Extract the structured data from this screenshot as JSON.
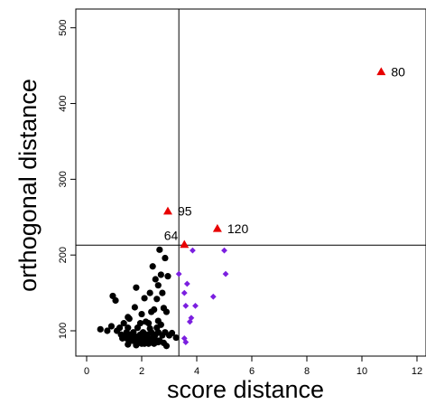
{
  "chart_data": {
    "type": "scatter",
    "title": "",
    "xlabel": "score distance",
    "ylabel": "orthogonal distance",
    "xlim": [
      -0.5,
      12.2
    ],
    "ylim": [
      60,
      540
    ],
    "xticks": [
      0,
      2,
      4,
      6,
      8,
      10,
      12
    ],
    "yticks": [
      100,
      200,
      300,
      400,
      500
    ],
    "grid": false,
    "legend": "none",
    "cutoffs": {
      "score": 3.35,
      "orthogonal": 213
    },
    "series": [
      {
        "marker": "circle",
        "color": "#000000",
        "x": [
          2.65,
          2.85,
          2.4,
          2.7,
          2.5,
          2.95,
          2.6,
          2.75,
          1.8,
          2.3,
          2.1,
          2.55,
          2.8,
          2.9,
          1.75,
          2.45,
          2.35,
          2.0,
          1.5,
          0.95,
          1.05,
          1.55,
          2.6,
          2.15,
          1.35,
          1.95,
          2.25,
          2.7,
          0.9,
          1.2,
          1.5,
          1.85,
          2.3,
          2.55,
          0.5,
          0.75,
          1.1,
          1.45,
          1.7,
          2.05,
          2.35,
          2.6,
          2.85,
          3.1,
          1.25,
          1.6,
          1.95,
          2.2,
          2.5,
          2.75,
          3.0,
          1.9,
          1.3,
          1.4,
          1.65,
          1.8,
          1.85,
          2.1,
          2.2,
          2.4,
          2.45,
          1.6,
          1.7,
          1.95,
          2.0,
          2.25,
          2.3,
          2.5,
          2.55,
          2.65,
          1.55,
          1.75,
          1.9,
          2.05,
          2.15,
          2.35,
          2.4,
          2.6,
          2.8,
          2.0,
          2.1,
          2.25,
          2.45,
          1.5,
          1.8,
          3.25,
          1.3,
          1.45,
          1.65,
          2.15,
          2.9
        ],
        "y": [
          207,
          196,
          185,
          174,
          168,
          172,
          160,
          150,
          157,
          150,
          143,
          142,
          130,
          125,
          131,
          128,
          125,
          122,
          118,
          146,
          140,
          116,
          113,
          112,
          110,
          110,
          110,
          108,
          106,
          104,
          104,
          104,
          103,
          104,
          102,
          100,
          100,
          98,
          98,
          98,
          98,
          98,
          98,
          97,
          95,
          95,
          95,
          95,
          95,
          94,
          94,
          93,
          92,
          92,
          92,
          92,
          91,
          92,
          91,
          91,
          90,
          89,
          89,
          89,
          88,
          88,
          88,
          88,
          87,
          87,
          86,
          86,
          86,
          85,
          85,
          85,
          85,
          85,
          84,
          83,
          83,
          83,
          83,
          82,
          81,
          91,
          90,
          90,
          87,
          86,
          80
        ]
      },
      {
        "marker": "diamond",
        "color": "#7b1fe0",
        "x": [
          3.35,
          3.85,
          5.0,
          3.65,
          5.05,
          3.55,
          3.95,
          4.6,
          3.6,
          3.8,
          3.75,
          3.55,
          3.6
        ],
        "y": [
          175,
          206,
          206,
          162,
          175,
          150,
          133,
          145,
          133,
          117,
          112,
          90,
          85
        ]
      },
      {
        "marker": "triangle",
        "color": "#e80000",
        "x": [
          10.7,
          2.95,
          4.75,
          3.55
        ],
        "y": [
          442,
          258,
          235,
          214
        ]
      }
    ],
    "annotations": [
      {
        "label": "80",
        "x": 10.7,
        "y": 442
      },
      {
        "label": "95",
        "x": 2.95,
        "y": 258
      },
      {
        "label": "120",
        "x": 4.75,
        "y": 235
      },
      {
        "label": "64",
        "x": 3.55,
        "y": 214
      }
    ]
  }
}
